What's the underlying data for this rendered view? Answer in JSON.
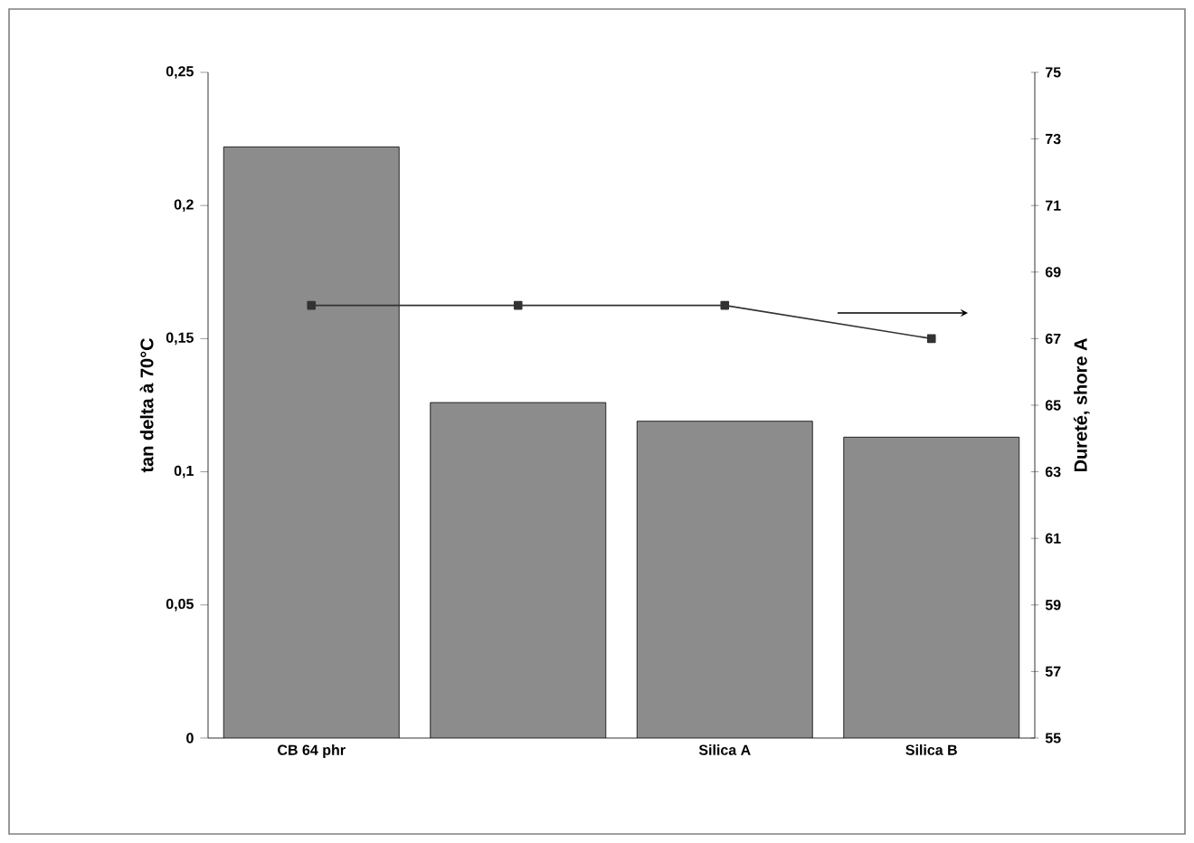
{
  "chart_data": {
    "type": "bar",
    "ylabel": "tan delta à 70°C",
    "y2label": "Dureté, shore A",
    "categories": [
      "CB 64 phr",
      null,
      "Silica A",
      "Silica B"
    ],
    "series": [
      {
        "color": "#8c8c8c",
        "values": [
          0.222,
          0.126,
          0.119,
          0.113
        ]
      },
      {
        "type": "line",
        "axis": "y2",
        "color": "#333333",
        "marker": "square",
        "values": [
          68,
          68,
          68,
          67
        ]
      }
    ],
    "ylim": [
      0,
      0.25
    ],
    "yticks": [
      0,
      {
        "value": 0.05,
        "label": "0,05"
      },
      {
        "value": 0.1,
        "label": "0,1"
      },
      {
        "value": 0.15,
        "label": "0,15"
      },
      {
        "value": 0.2,
        "label": "0,2"
      },
      {
        "value": 0.25,
        "label": "0,25"
      }
    ],
    "y2lim": [
      55,
      75
    ],
    "y2ticks": [
      55,
      57,
      59,
      61,
      63,
      65,
      67,
      69,
      71,
      73,
      75
    ]
  }
}
